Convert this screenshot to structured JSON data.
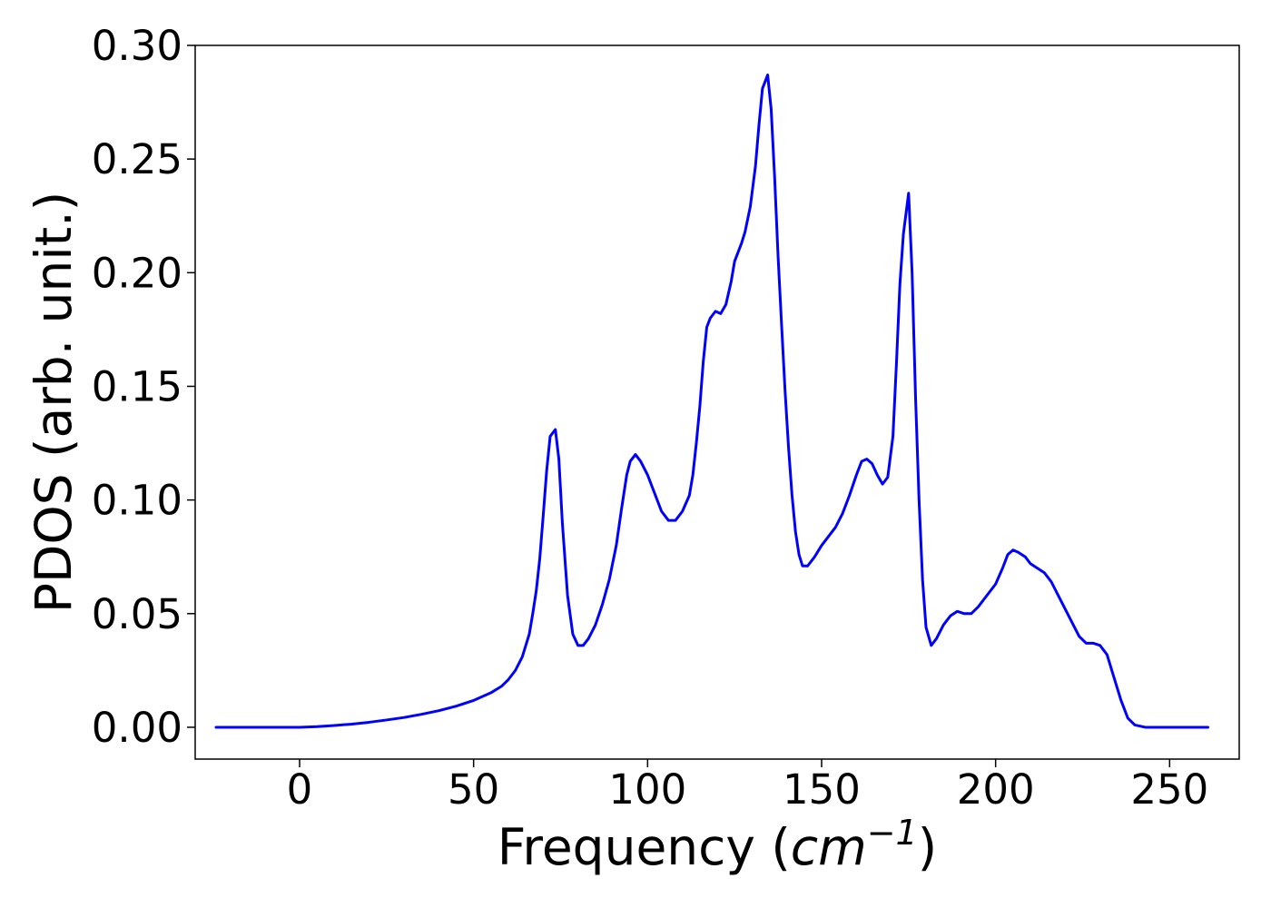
{
  "chart_data": {
    "type": "line",
    "title": "",
    "xlabel": {
      "prefix": "Frequency (",
      "unit_base": "cm",
      "unit_exponent": "−1",
      "suffix": ")"
    },
    "ylabel": "PDOS (arb. unit.)",
    "xlim": [
      -30,
      270
    ],
    "ylim": [
      -0.014,
      0.3
    ],
    "x_ticks": [
      0,
      50,
      100,
      150,
      200,
      250
    ],
    "x_tick_labels": [
      "0",
      "50",
      "100",
      "150",
      "200",
      "250"
    ],
    "y_ticks": [
      0.0,
      0.05,
      0.1,
      0.15,
      0.2,
      0.25,
      0.3
    ],
    "y_tick_labels": [
      "0.00",
      "0.05",
      "0.10",
      "0.15",
      "0.20",
      "0.25",
      "0.30"
    ],
    "grid": false,
    "legend": "none",
    "series": [
      {
        "color": "#0000ff",
        "points": [
          [
            -24,
            0.0
          ],
          [
            -10,
            0.0
          ],
          [
            0,
            0.0
          ],
          [
            5,
            0.0003
          ],
          [
            10,
            0.0008
          ],
          [
            15,
            0.0014
          ],
          [
            20,
            0.0022
          ],
          [
            25,
            0.0032
          ],
          [
            30,
            0.0043
          ],
          [
            35,
            0.0057
          ],
          [
            40,
            0.0073
          ],
          [
            45,
            0.0093
          ],
          [
            50,
            0.0118
          ],
          [
            55,
            0.0152
          ],
          [
            58,
            0.018
          ],
          [
            60,
            0.021
          ],
          [
            62,
            0.025
          ],
          [
            64,
            0.031
          ],
          [
            66,
            0.041
          ],
          [
            67,
            0.05
          ],
          [
            68,
            0.06
          ],
          [
            69,
            0.074
          ],
          [
            70,
            0.093
          ],
          [
            71,
            0.113
          ],
          [
            72,
            0.128
          ],
          [
            73.5,
            0.131
          ],
          [
            74.5,
            0.118
          ],
          [
            75.5,
            0.09
          ],
          [
            77,
            0.058
          ],
          [
            78.5,
            0.041
          ],
          [
            80,
            0.036
          ],
          [
            81.5,
            0.036
          ],
          [
            83,
            0.039
          ],
          [
            85,
            0.045
          ],
          [
            87,
            0.054
          ],
          [
            89,
            0.065
          ],
          [
            91,
            0.08
          ],
          [
            92.5,
            0.096
          ],
          [
            94,
            0.111
          ],
          [
            95,
            0.117
          ],
          [
            96.5,
            0.12
          ],
          [
            98,
            0.117
          ],
          [
            100,
            0.111
          ],
          [
            102,
            0.103
          ],
          [
            104,
            0.095
          ],
          [
            106,
            0.091
          ],
          [
            108,
            0.091
          ],
          [
            110,
            0.095
          ],
          [
            112,
            0.102
          ],
          [
            113,
            0.111
          ],
          [
            114,
            0.125
          ],
          [
            115,
            0.141
          ],
          [
            116,
            0.161
          ],
          [
            117,
            0.176
          ],
          [
            118,
            0.18
          ],
          [
            119.5,
            0.183
          ],
          [
            121,
            0.182
          ],
          [
            122.5,
            0.186
          ],
          [
            124,
            0.196
          ],
          [
            125,
            0.205
          ],
          [
            127,
            0.213
          ],
          [
            128,
            0.218
          ],
          [
            129.5,
            0.229
          ],
          [
            131,
            0.247
          ],
          [
            132,
            0.265
          ],
          [
            133,
            0.281
          ],
          [
            134.5,
            0.287
          ],
          [
            135.5,
            0.272
          ],
          [
            136.5,
            0.242
          ],
          [
            137.5,
            0.207
          ],
          [
            138.5,
            0.177
          ],
          [
            139.5,
            0.148
          ],
          [
            140.5,
            0.123
          ],
          [
            141.5,
            0.102
          ],
          [
            142.5,
            0.086
          ],
          [
            143.5,
            0.076
          ],
          [
            144.5,
            0.071
          ],
          [
            146,
            0.071
          ],
          [
            148,
            0.075
          ],
          [
            150,
            0.08
          ],
          [
            152,
            0.084
          ],
          [
            154,
            0.088
          ],
          [
            156,
            0.094
          ],
          [
            158,
            0.102
          ],
          [
            160,
            0.111
          ],
          [
            161.5,
            0.117
          ],
          [
            163,
            0.118
          ],
          [
            164.5,
            0.116
          ],
          [
            166,
            0.111
          ],
          [
            167.5,
            0.107
          ],
          [
            169,
            0.11
          ],
          [
            170.5,
            0.128
          ],
          [
            171.5,
            0.16
          ],
          [
            172.5,
            0.195
          ],
          [
            173.5,
            0.217
          ],
          [
            175,
            0.235
          ],
          [
            176,
            0.2
          ],
          [
            177,
            0.145
          ],
          [
            178,
            0.1
          ],
          [
            179,
            0.065
          ],
          [
            180,
            0.044
          ],
          [
            181.5,
            0.036
          ],
          [
            183,
            0.039
          ],
          [
            185,
            0.045
          ],
          [
            187,
            0.049
          ],
          [
            189,
            0.051
          ],
          [
            191,
            0.05
          ],
          [
            193,
            0.05
          ],
          [
            195,
            0.053
          ],
          [
            197,
            0.057
          ],
          [
            200,
            0.063
          ],
          [
            202,
            0.07
          ],
          [
            203.5,
            0.076
          ],
          [
            205,
            0.078
          ],
          [
            206.5,
            0.077
          ],
          [
            208.5,
            0.075
          ],
          [
            210,
            0.072
          ],
          [
            212,
            0.07
          ],
          [
            214,
            0.068
          ],
          [
            216,
            0.064
          ],
          [
            218,
            0.058
          ],
          [
            220,
            0.052
          ],
          [
            222,
            0.046
          ],
          [
            224,
            0.04
          ],
          [
            226,
            0.037
          ],
          [
            228,
            0.037
          ],
          [
            230,
            0.036
          ],
          [
            232,
            0.032
          ],
          [
            234,
            0.022
          ],
          [
            236,
            0.012
          ],
          [
            238,
            0.004
          ],
          [
            240,
            0.001
          ],
          [
            243,
            0.0
          ],
          [
            250,
            0.0
          ],
          [
            261,
            0.0
          ]
        ]
      }
    ]
  }
}
